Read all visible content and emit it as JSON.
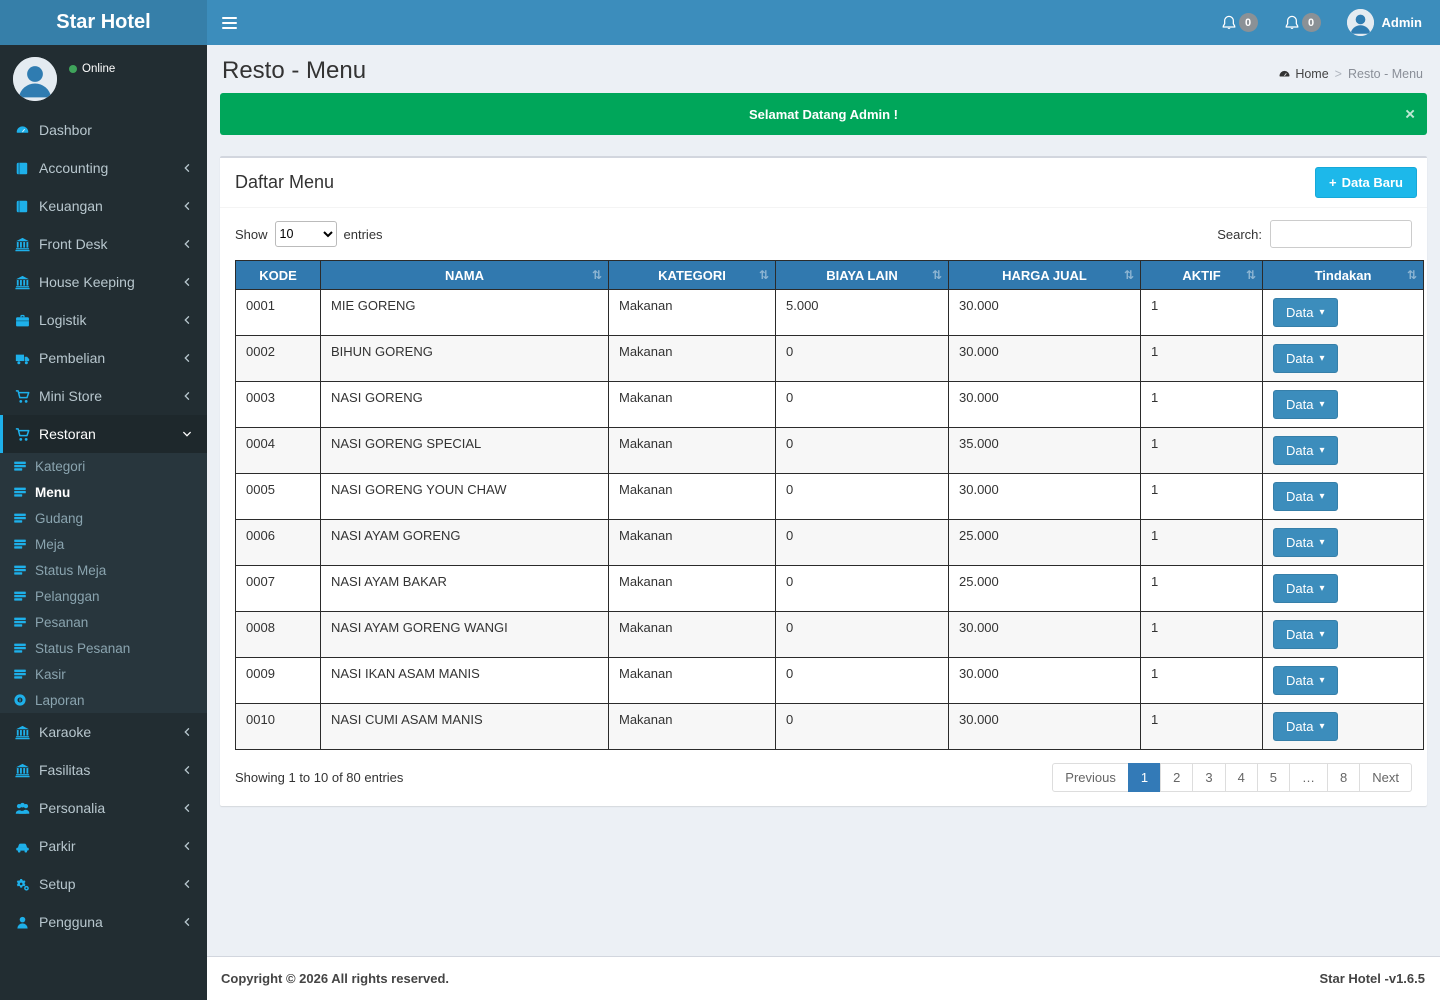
{
  "navbar": {
    "brand": "Star Hotel",
    "user": "Admin",
    "notifications": [
      {
        "icon": "bell-icon",
        "count": "0"
      },
      {
        "icon": "bell-icon",
        "count": "0"
      }
    ]
  },
  "sidebar": {
    "status": "Online",
    "items": [
      {
        "label": "Dashbor",
        "icon": "dashboard-icon",
        "chevron": "none"
      },
      {
        "label": "Accounting",
        "icon": "book-icon",
        "chevron": "left"
      },
      {
        "label": "Keuangan",
        "icon": "book-icon",
        "chevron": "left"
      },
      {
        "label": "Front Desk",
        "icon": "bank-icon",
        "chevron": "left"
      },
      {
        "label": "House Keeping",
        "icon": "bank-icon",
        "chevron": "left"
      },
      {
        "label": "Logistik",
        "icon": "briefcase-icon",
        "chevron": "left"
      },
      {
        "label": "Pembelian",
        "icon": "truck-icon",
        "chevron": "left"
      },
      {
        "label": "Mini Store",
        "icon": "cart-icon",
        "chevron": "left"
      },
      {
        "label": "Restoran",
        "icon": "cart-icon",
        "chevron": "down",
        "active": true,
        "submenu": [
          {
            "label": "Kategori",
            "icon": "table-icon"
          },
          {
            "label": "Menu",
            "icon": "table-icon",
            "active": true
          },
          {
            "label": "Gudang",
            "icon": "table-icon"
          },
          {
            "label": "Meja",
            "icon": "table-icon"
          },
          {
            "label": "Status Meja",
            "icon": "table-icon"
          },
          {
            "label": "Pelanggan",
            "icon": "table-icon"
          },
          {
            "label": "Pesanan",
            "icon": "table-icon"
          },
          {
            "label": "Status Pesanan",
            "icon": "table-icon"
          },
          {
            "label": "Kasir",
            "icon": "table-icon"
          },
          {
            "label": "Laporan",
            "icon": "report-icon"
          }
        ]
      },
      {
        "label": "Karaoke",
        "icon": "bank-icon",
        "chevron": "left"
      },
      {
        "label": "Fasilitas",
        "icon": "bank-icon",
        "chevron": "left"
      },
      {
        "label": "Personalia",
        "icon": "users-icon",
        "chevron": "left"
      },
      {
        "label": "Parkir",
        "icon": "car-icon",
        "chevron": "left"
      },
      {
        "label": "Setup",
        "icon": "gears-icon",
        "chevron": "left"
      },
      {
        "label": "Pengguna",
        "icon": "user-icon",
        "chevron": "left"
      }
    ]
  },
  "page": {
    "title": "Resto - Menu",
    "breadcrumb": {
      "home": "Home",
      "separator": ">",
      "current": "Resto - Menu"
    },
    "alert": {
      "text": "Selamat Datang Admin !",
      "close": "×"
    }
  },
  "panel": {
    "title": "Daftar Menu",
    "add_button": "Data Baru",
    "show_label": "Show",
    "entries_label": "entries",
    "page_length": "10",
    "search_label": "Search:",
    "search_value": "",
    "table": {
      "columns": [
        {
          "label": "KODE",
          "sortable": false
        },
        {
          "label": "NAMA",
          "sortable": true
        },
        {
          "label": "KATEGORI",
          "sortable": true
        },
        {
          "label": "BIAYA LAIN",
          "sortable": true
        },
        {
          "label": "HARGA JUAL",
          "sortable": true
        },
        {
          "label": "AKTIF",
          "sortable": true
        },
        {
          "label": "Tindakan",
          "sortable": true
        }
      ],
      "action_label": "Data",
      "rows": [
        [
          "0001",
          "MIE GORENG",
          "Makanan",
          "5.000",
          "30.000",
          "1"
        ],
        [
          "0002",
          "BIHUN GORENG",
          "Makanan",
          "0",
          "30.000",
          "1"
        ],
        [
          "0003",
          "NASI GORENG",
          "Makanan",
          "0",
          "30.000",
          "1"
        ],
        [
          "0004",
          "NASI GORENG SPECIAL",
          "Makanan",
          "0",
          "35.000",
          "1"
        ],
        [
          "0005",
          "NASI GORENG YOUN CHAW",
          "Makanan",
          "0",
          "30.000",
          "1"
        ],
        [
          "0006",
          "NASI AYAM GORENG",
          "Makanan",
          "0",
          "25.000",
          "1"
        ],
        [
          "0007",
          "NASI AYAM BAKAR",
          "Makanan",
          "0",
          "25.000",
          "1"
        ],
        [
          "0008",
          "NASI AYAM GORENG WANGI",
          "Makanan",
          "0",
          "30.000",
          "1"
        ],
        [
          "0009",
          "NASI IKAN ASAM MANIS",
          "Makanan",
          "0",
          "30.000",
          "1"
        ],
        [
          "0010",
          "NASI CUMI ASAM MANIS",
          "Makanan",
          "0",
          "30.000",
          "1"
        ]
      ]
    },
    "info": "Showing 1 to 10 of 80 entries",
    "pagination": {
      "items": [
        "Previous",
        "1",
        "2",
        "3",
        "4",
        "5",
        "…",
        "8",
        "Next"
      ],
      "active": "1"
    }
  },
  "footer": {
    "left": "Copyright © 2026 All rights reserved.",
    "right": "Star Hotel -v1.6.5"
  },
  "icons": {
    "plus": "+",
    "caret_down": "▾",
    "sort": "⇅"
  },
  "colors": {
    "navbar": "#3c8dbc",
    "brand": "#367fa9",
    "sidebar": "#222d32",
    "sidebar_icon": "#1eb0ea",
    "alert_green": "#00a65a",
    "table_header": "#3179af",
    "add_button": "#1db8ea",
    "action_button": "#3c8dbc",
    "pagination_active": "#337ab7"
  }
}
